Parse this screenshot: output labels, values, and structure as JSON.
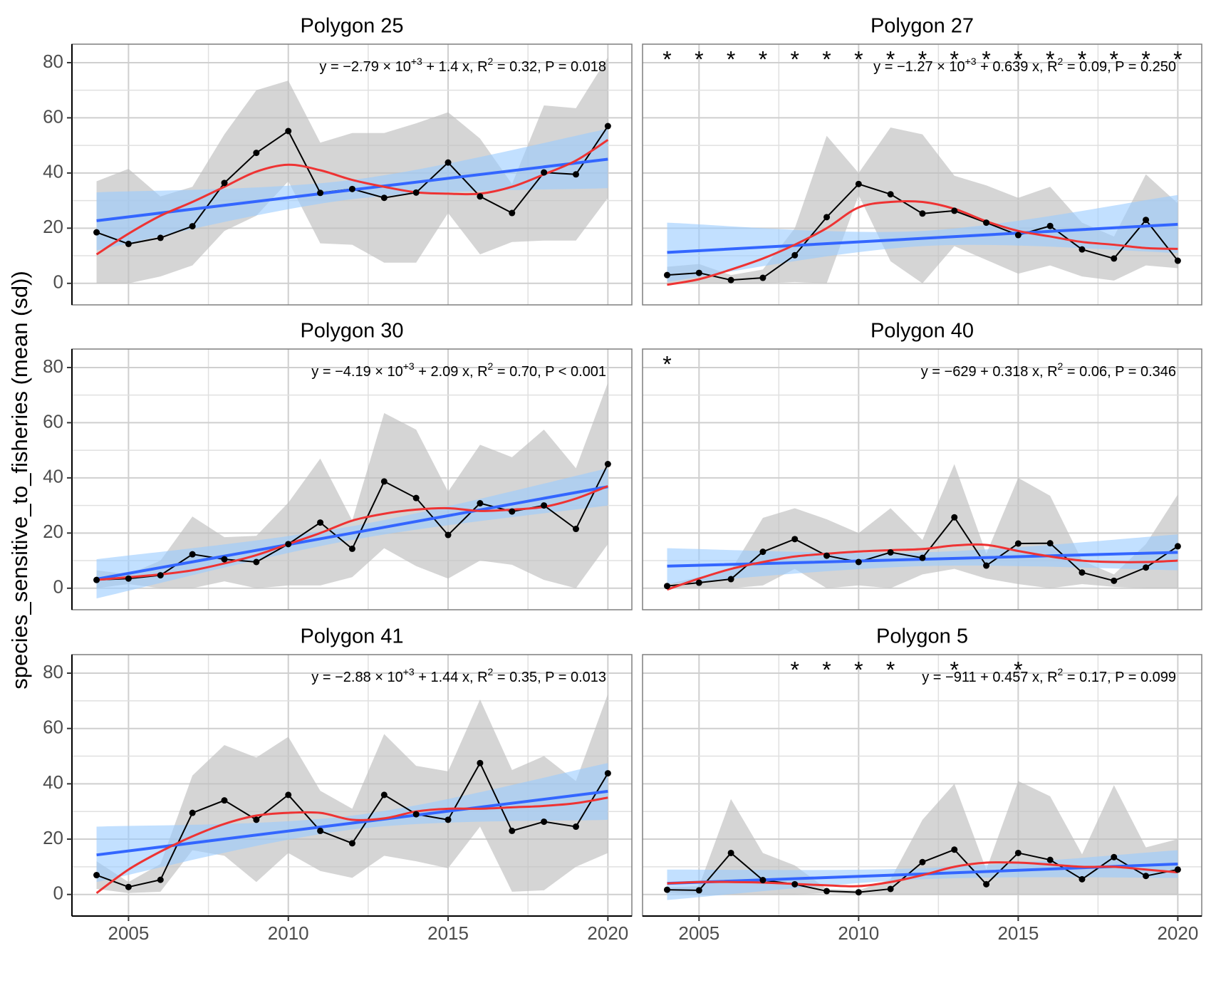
{
  "chart_data": {
    "type": "line",
    "ylabel": "species_sensitive_to_fisheries (mean (sd))",
    "x": [
      2004,
      2005,
      2006,
      2007,
      2008,
      2009,
      2010,
      2011,
      2012,
      2013,
      2014,
      2015,
      2016,
      2017,
      2018,
      2019,
      2020
    ],
    "xlim": [
      2003.23,
      2020.75
    ],
    "xticks": [
      2005,
      2010,
      2015,
      2020
    ],
    "ylim": [
      -7.8,
      86.7
    ],
    "yticks": [
      0,
      20,
      40,
      60,
      80
    ],
    "grid": true,
    "colors": {
      "mean": "#000000",
      "sd": "#bfbfbf",
      "fit": "#3366ff",
      "band": "#99ccff",
      "smooth": "#ee3333"
    },
    "fit_x": [
      2004,
      2012,
      2020
    ],
    "panels": [
      {
        "title": "Polygon 25",
        "annotation": [
          "y = −2.79 × 10",
          "+3",
          " + 1.4 x, R",
          "2",
          " = 0.32, P = 0.018"
        ],
        "markers": {
          "label": "*",
          "x": []
        },
        "mean": [
          18.5,
          14.3,
          16.5,
          20.7,
          36.4,
          47.3,
          55.2,
          32.8,
          34.2,
          31,
          32.9,
          43.8,
          31.5,
          25.5,
          40.2,
          39.5,
          57
        ],
        "sd_upper": [
          37,
          41.5,
          31.5,
          35,
          54,
          70,
          73.5,
          51,
          54.5,
          54.5,
          58,
          62,
          52.5,
          36,
          64.5,
          63.5,
          82
        ],
        "sd_lower": [
          0,
          0,
          2.5,
          6.5,
          19,
          24.5,
          37,
          14.5,
          14,
          7.5,
          7.5,
          25.5,
          10.5,
          15,
          15.5,
          15.5,
          31
        ],
        "fit": [
          22.7,
          33.9,
          45
        ],
        "fit_lower": [
          12,
          30.5,
          34.5
        ],
        "fit_upper": [
          33,
          37.5,
          56
        ],
        "smooth": [
          10.5,
          18,
          24.5,
          29.5,
          35,
          40.5,
          43,
          41,
          37.5,
          35,
          33,
          32.5,
          32.5,
          35,
          39.5,
          44.5,
          52
        ]
      },
      {
        "title": "Polygon 27",
        "annotation": [
          "y = −1.27 × 10",
          "+3",
          " + 0.639 x, R",
          "2",
          " = 0.09, P = 0.250"
        ],
        "markers": {
          "label": "*",
          "x": [
            2004,
            2005,
            2006,
            2007,
            2008,
            2009,
            2010,
            2011,
            2012,
            2013,
            2014,
            2015,
            2016,
            2017,
            2018,
            2019,
            2020
          ]
        },
        "mean": [
          3,
          3.8,
          1.2,
          2,
          10.2,
          24,
          36,
          32.3,
          25.3,
          26.3,
          22,
          17.5,
          20.8,
          12.3,
          9,
          23,
          8.2
        ],
        "sd_upper": [
          6,
          7,
          3,
          5,
          20,
          53.5,
          40,
          56.5,
          54,
          39,
          35.5,
          31,
          35,
          22,
          17,
          39.5,
          29
        ],
        "sd_lower": [
          0,
          0,
          0,
          0,
          0.5,
          0,
          32,
          8,
          0,
          13.5,
          8.5,
          3.5,
          6.5,
          2.5,
          1,
          6.5,
          5.5
        ],
        "fit": [
          11.2,
          16.3,
          21.4
        ],
        "fit_lower": [
          0.5,
          13.5,
          11
        ],
        "fit_upper": [
          22,
          19,
          32
        ],
        "smooth": [
          -0.5,
          1.5,
          5,
          9,
          14,
          20,
          27.5,
          29.5,
          29.5,
          27,
          22.5,
          19,
          17,
          15,
          14,
          12.8,
          12.5
        ]
      },
      {
        "title": "Polygon 30",
        "annotation": [
          "y = −4.19 × 10",
          "+3",
          " + 2.09 x, R",
          "2",
          " = 0.70, P < 0.001"
        ],
        "markers": {
          "label": "*",
          "x": []
        },
        "mean": [
          3,
          3.5,
          4.7,
          12.3,
          10.5,
          9.5,
          16,
          23.8,
          14.3,
          38.7,
          32.7,
          19.3,
          30.8,
          27.8,
          30,
          21.5,
          45
        ],
        "sd_upper": [
          6.5,
          5,
          10,
          26,
          18.5,
          19,
          31,
          47,
          24.5,
          63.5,
          57.5,
          35,
          52,
          47.5,
          57.5,
          43.5,
          74.5
        ],
        "sd_lower": [
          0,
          1.5,
          0,
          0,
          2.5,
          0,
          1,
          1,
          4,
          14.5,
          8,
          3.5,
          10,
          8.5,
          3,
          0,
          16
        ],
        "fit": [
          3.3,
          20,
          36.8
        ],
        "fit_lower": [
          -3.7,
          17.5,
          30
        ],
        "fit_upper": [
          10.5,
          22.5,
          43.5
        ],
        "smooth": [
          3,
          4,
          5,
          6.5,
          9,
          12,
          16,
          20,
          24.5,
          27,
          28.5,
          29,
          28,
          28.5,
          29.5,
          32.5,
          37
        ]
      },
      {
        "title": "Polygon 40",
        "annotation": [
          "y = −629 + 0.318 x, R",
          "2",
          " = 0.06, P = 0.346"
        ],
        "markers": {
          "label": "*",
          "x": [
            2004
          ]
        },
        "mean": [
          0.8,
          2,
          3.3,
          13.2,
          17.8,
          11.8,
          9.5,
          13,
          11,
          25.7,
          8.2,
          16.2,
          16.3,
          5.7,
          2.7,
          7.5,
          15.2
        ],
        "sd_upper": [
          1.5,
          4,
          6.5,
          25.5,
          29,
          25,
          20,
          29,
          17.5,
          45,
          12.5,
          40,
          33.5,
          10,
          5,
          16,
          34
        ],
        "sd_lower": [
          0,
          0,
          0,
          1,
          7,
          0,
          1,
          0,
          5,
          7,
          3.5,
          1.5,
          0,
          1.5,
          0.5,
          0,
          0
        ],
        "fit": [
          8,
          10.5,
          13
        ],
        "fit_lower": [
          1.5,
          8,
          6.5
        ],
        "fit_upper": [
          14.5,
          13,
          19.5
        ],
        "smooth": [
          -0.5,
          3.5,
          7,
          9.5,
          11.5,
          12.5,
          13.3,
          13.8,
          14.2,
          15.5,
          15.7,
          13.5,
          11.5,
          10,
          9.5,
          9.5,
          10
        ]
      },
      {
        "title": "Polygon 41",
        "annotation": [
          "y = −2.88 × 10",
          "+3",
          " + 1.44 x, R",
          "2",
          " = 0.35, P = 0.013"
        ],
        "markers": {
          "label": "*",
          "x": []
        },
        "mean": [
          7,
          2.7,
          5.3,
          29.5,
          34,
          27,
          36,
          23,
          18.5,
          36,
          29,
          27,
          47.5,
          23,
          26.3,
          24.5,
          43.8
        ],
        "sd_upper": [
          12,
          4.5,
          11,
          43,
          54,
          49.5,
          57,
          37.5,
          31,
          58,
          46.5,
          44.5,
          70.5,
          45,
          50,
          41,
          72.5
        ],
        "sd_lower": [
          2,
          0.5,
          1,
          16,
          14,
          4.5,
          15,
          8.5,
          6,
          14,
          12,
          9.5,
          24.5,
          1,
          1.5,
          10,
          15
        ],
        "fit": [
          14.3,
          25.8,
          37.3
        ],
        "fit_lower": [
          4.5,
          23.5,
          27
        ],
        "fit_upper": [
          24.5,
          28.5,
          47.5
        ],
        "smooth": [
          0.5,
          9,
          15.5,
          21,
          25.5,
          28.5,
          29.5,
          29.5,
          27,
          27.5,
          30,
          31,
          31,
          31.5,
          32,
          33,
          35
        ]
      },
      {
        "title": "Polygon 5",
        "annotation": [
          "y = −911 + 0.457 x, R",
          "2",
          " = 0.17, P = 0.099"
        ],
        "markers": {
          "label": "*",
          "x": [
            2008,
            2009,
            2010,
            2011,
            2013,
            2015
          ]
        },
        "mean": [
          1.7,
          1.5,
          15,
          5.2,
          3.7,
          1.2,
          0.8,
          2,
          11.7,
          16.2,
          3.7,
          15,
          12.5,
          5.5,
          13.5,
          6.7,
          9
        ],
        "sd_upper": [
          2.5,
          3,
          34.5,
          15,
          10.5,
          2,
          1.5,
          5.5,
          27,
          40,
          9,
          41,
          35.5,
          14.5,
          39.5,
          17,
          20
        ],
        "sd_lower": [
          0.5,
          0,
          0,
          0,
          0,
          0.5,
          0,
          0,
          0,
          0,
          0,
          0,
          0,
          0,
          0,
          0,
          0
        ],
        "fit": [
          4,
          7.4,
          11
        ],
        "fit_lower": [
          -2,
          5.5,
          6
        ],
        "fit_upper": [
          9,
          9.5,
          16
        ],
        "smooth": [
          4,
          4.5,
          4.5,
          4.3,
          3.8,
          3.3,
          3,
          4.5,
          7,
          10,
          11.5,
          11.5,
          10.8,
          10,
          10,
          9,
          8
        ]
      }
    ]
  }
}
